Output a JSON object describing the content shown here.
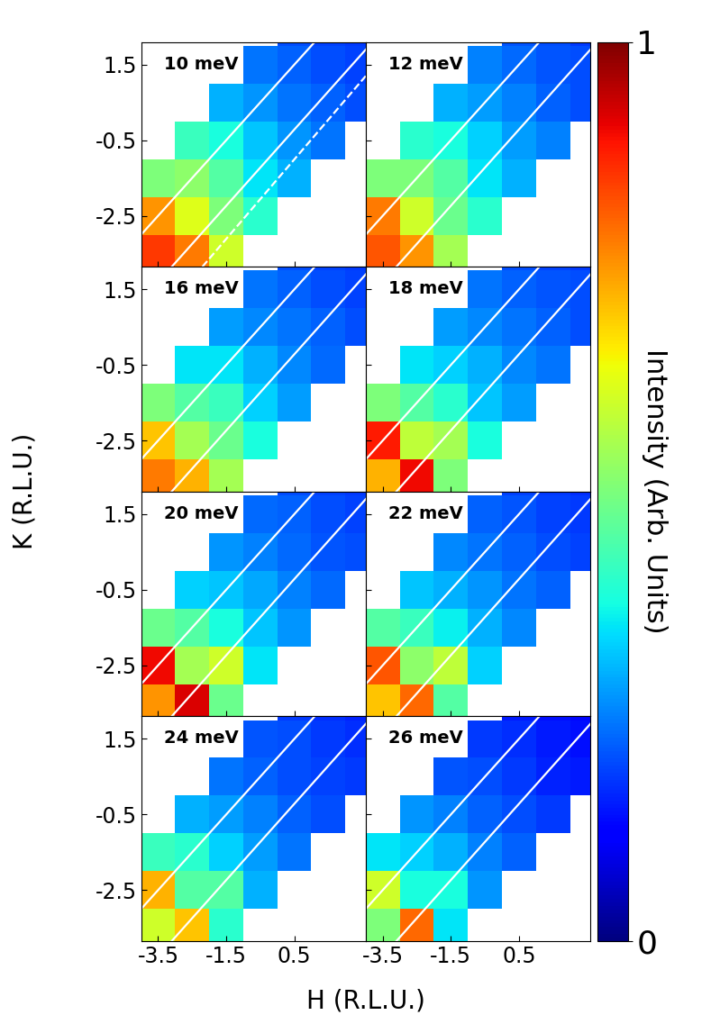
{
  "chart_data": {
    "type": "heatmap",
    "x_label": "H (R.L.U.)",
    "y_label": "K (R.L.U.)",
    "xlim": [
      -4.0,
      2.6
    ],
    "ylim": [
      -3.85,
      2.1
    ],
    "xticks": [
      -3.5,
      -1.5,
      0.5
    ],
    "yticks": [
      -2.5,
      -0.5,
      1.5
    ],
    "h": [
      -3.5,
      -2.5,
      -1.5,
      -0.5,
      0.5,
      1.5,
      2.5
    ],
    "k": [
      -3.5,
      -2.5,
      -1.5,
      -0.5,
      0.5,
      1.5,
      2.5
    ],
    "colorbar": {
      "label": "Intensity (Arb. Units)",
      "range": [
        0,
        1
      ],
      "ticks": [
        0,
        1
      ]
    },
    "panels": [
      {
        "title": "10 meV",
        "cells": [
          [
            0.85,
            0.78,
            0.6,
            null,
            null,
            null,
            null
          ],
          [
            0.75,
            0.62,
            0.5,
            0.4,
            null,
            null,
            null
          ],
          [
            0.5,
            0.52,
            0.45,
            0.35,
            0.3,
            null,
            null
          ],
          [
            null,
            0.42,
            0.38,
            0.32,
            0.27,
            0.24,
            null
          ],
          [
            null,
            null,
            0.3,
            0.27,
            0.24,
            0.22,
            0.2
          ],
          [
            null,
            null,
            null,
            0.24,
            0.22,
            0.2,
            0.19
          ],
          [
            null,
            null,
            null,
            null,
            0.2,
            0.19,
            0.18
          ]
        ],
        "lines": [
          {
            "points": [
              [
                -4.0,
                -3.0
              ],
              [
                1.1,
                2.1
              ]
            ],
            "line_style": "solid"
          },
          {
            "points": [
              [
                -3.1,
                -3.85
              ],
              [
                2.6,
                1.9
              ]
            ],
            "line_style": "solid"
          },
          {
            "points": [
              [
                -2.2,
                -3.85
              ],
              [
                2.6,
                1.2
              ]
            ],
            "line_style": "dashed"
          }
        ]
      },
      {
        "title": "12 meV",
        "cells": [
          [
            0.82,
            0.75,
            0.55,
            null,
            null,
            null,
            null
          ],
          [
            0.78,
            0.6,
            0.48,
            0.4,
            null,
            null,
            null
          ],
          [
            0.5,
            0.5,
            0.45,
            0.35,
            0.3,
            null,
            null
          ],
          [
            null,
            0.4,
            0.38,
            0.33,
            0.28,
            0.25,
            null
          ],
          [
            null,
            null,
            0.3,
            0.28,
            0.25,
            0.22,
            0.2
          ],
          [
            null,
            null,
            null,
            0.25,
            0.23,
            0.21,
            0.2
          ],
          [
            null,
            null,
            null,
            null,
            0.21,
            0.2,
            0.18
          ]
        ],
        "lines": [
          {
            "points": [
              [
                -4.0,
                -3.0
              ],
              [
                1.1,
                2.1
              ]
            ],
            "line_style": "solid"
          },
          {
            "points": [
              [
                -3.1,
                -3.85
              ],
              [
                2.6,
                1.9
              ]
            ],
            "line_style": "solid"
          }
        ]
      },
      {
        "title": "16 meV",
        "cells": [
          [
            0.78,
            0.72,
            0.55,
            null,
            null,
            null,
            null
          ],
          [
            0.7,
            0.55,
            0.48,
            0.38,
            null,
            null,
            null
          ],
          [
            0.5,
            0.45,
            0.42,
            0.33,
            0.28,
            null,
            null
          ],
          [
            null,
            0.35,
            0.35,
            0.3,
            0.26,
            0.23,
            null
          ],
          [
            null,
            null,
            0.28,
            0.26,
            0.24,
            0.22,
            0.2
          ],
          [
            null,
            null,
            null,
            0.24,
            0.22,
            0.2,
            0.19
          ],
          [
            null,
            null,
            null,
            null,
            0.2,
            0.19,
            0.18
          ]
        ],
        "lines": [
          {
            "points": [
              [
                -4.0,
                -3.0
              ],
              [
                1.1,
                2.1
              ]
            ],
            "line_style": "solid"
          },
          {
            "points": [
              [
                -3.1,
                -3.85
              ],
              [
                2.6,
                1.9
              ]
            ],
            "line_style": "solid"
          }
        ]
      },
      {
        "title": "18 meV",
        "cells": [
          [
            0.72,
            0.9,
            0.5,
            null,
            null,
            null,
            null
          ],
          [
            0.88,
            0.58,
            0.55,
            0.38,
            null,
            null,
            null
          ],
          [
            0.5,
            0.45,
            0.4,
            0.32,
            0.28,
            null,
            null
          ],
          [
            null,
            0.35,
            0.33,
            0.3,
            0.26,
            0.24,
            null
          ],
          [
            null,
            null,
            0.28,
            0.26,
            0.24,
            0.22,
            0.2
          ],
          [
            null,
            null,
            null,
            0.24,
            0.22,
            0.21,
            0.2
          ],
          [
            null,
            null,
            null,
            null,
            0.2,
            0.19,
            0.18
          ]
        ],
        "lines": [
          {
            "points": [
              [
                -4.0,
                -3.0
              ],
              [
                1.1,
                2.1
              ]
            ],
            "line_style": "solid"
          },
          {
            "points": [
              [
                -3.1,
                -3.85
              ],
              [
                2.6,
                1.9
              ]
            ],
            "line_style": "solid"
          }
        ]
      },
      {
        "title": "20 meV",
        "cells": [
          [
            0.75,
            0.92,
            0.48,
            null,
            null,
            null,
            null
          ],
          [
            0.9,
            0.55,
            0.6,
            0.35,
            null,
            null,
            null
          ],
          [
            0.48,
            0.45,
            0.38,
            0.32,
            0.27,
            null,
            null
          ],
          [
            null,
            0.33,
            0.32,
            0.29,
            0.25,
            0.23,
            null
          ],
          [
            null,
            null,
            0.27,
            0.25,
            0.23,
            0.21,
            0.2
          ],
          [
            null,
            null,
            null,
            0.23,
            0.22,
            0.2,
            0.19
          ],
          [
            null,
            null,
            null,
            null,
            0.2,
            0.19,
            0.18
          ]
        ],
        "lines": [
          {
            "points": [
              [
                -4.0,
                -3.0
              ],
              [
                1.1,
                2.1
              ]
            ],
            "line_style": "solid"
          },
          {
            "points": [
              [
                -3.1,
                -3.85
              ],
              [
                2.6,
                1.9
              ]
            ],
            "line_style": "solid"
          }
        ]
      },
      {
        "title": "22 meV",
        "cells": [
          [
            0.7,
            0.8,
            0.45,
            null,
            null,
            null,
            null
          ],
          [
            0.82,
            0.52,
            0.58,
            0.33,
            null,
            null,
            null
          ],
          [
            0.45,
            0.42,
            0.36,
            0.3,
            0.26,
            null,
            null
          ],
          [
            null,
            0.32,
            0.3,
            0.27,
            0.24,
            0.22,
            null
          ],
          [
            null,
            null,
            0.26,
            0.24,
            0.22,
            0.2,
            0.19
          ],
          [
            null,
            null,
            null,
            0.22,
            0.21,
            0.19,
            0.18
          ],
          [
            null,
            null,
            null,
            null,
            0.19,
            0.18,
            0.17
          ]
        ],
        "lines": [
          {
            "points": [
              [
                -4.0,
                -3.0
              ],
              [
                1.1,
                2.1
              ]
            ],
            "line_style": "solid"
          },
          {
            "points": [
              [
                -3.1,
                -3.85
              ],
              [
                2.6,
                1.9
              ]
            ],
            "line_style": "solid"
          }
        ]
      },
      {
        "title": "24 meV",
        "cells": [
          [
            0.6,
            0.7,
            0.4,
            null,
            null,
            null,
            null
          ],
          [
            0.72,
            0.45,
            0.45,
            0.3,
            null,
            null,
            null
          ],
          [
            0.42,
            0.4,
            0.33,
            0.28,
            0.24,
            null,
            null
          ],
          [
            null,
            0.3,
            0.28,
            0.25,
            0.22,
            0.2,
            null
          ],
          [
            null,
            null,
            0.24,
            0.22,
            0.2,
            0.19,
            0.18
          ],
          [
            null,
            null,
            null,
            0.21,
            0.2,
            0.18,
            0.17
          ],
          [
            null,
            null,
            null,
            null,
            0.18,
            0.17,
            0.16
          ]
        ],
        "lines": [
          {
            "points": [
              [
                -4.0,
                -3.0
              ],
              [
                1.1,
                2.1
              ]
            ],
            "line_style": "solid"
          },
          {
            "points": [
              [
                -3.1,
                -3.85
              ],
              [
                2.6,
                1.9
              ]
            ],
            "line_style": "solid"
          }
        ]
      },
      {
        "title": "26 meV",
        "cells": [
          [
            0.5,
            0.8,
            0.35,
            null,
            null,
            null,
            null
          ],
          [
            0.6,
            0.38,
            0.38,
            0.27,
            null,
            null,
            null
          ],
          [
            0.35,
            0.33,
            0.3,
            0.25,
            0.22,
            null,
            null
          ],
          [
            null,
            0.27,
            0.25,
            0.22,
            0.2,
            0.18,
            null
          ],
          [
            null,
            null,
            0.21,
            0.2,
            0.18,
            0.16,
            0.15
          ],
          [
            null,
            null,
            null,
            0.18,
            0.17,
            0.15,
            0.14
          ],
          [
            null,
            null,
            null,
            null,
            0.15,
            0.14,
            0.13
          ]
        ],
        "lines": [
          {
            "points": [
              [
                -4.0,
                -3.0
              ],
              [
                1.1,
                2.1
              ]
            ],
            "line_style": "solid"
          },
          {
            "points": [
              [
                -3.1,
                -3.85
              ],
              [
                2.6,
                1.9
              ]
            ],
            "line_style": "solid"
          }
        ]
      }
    ]
  }
}
